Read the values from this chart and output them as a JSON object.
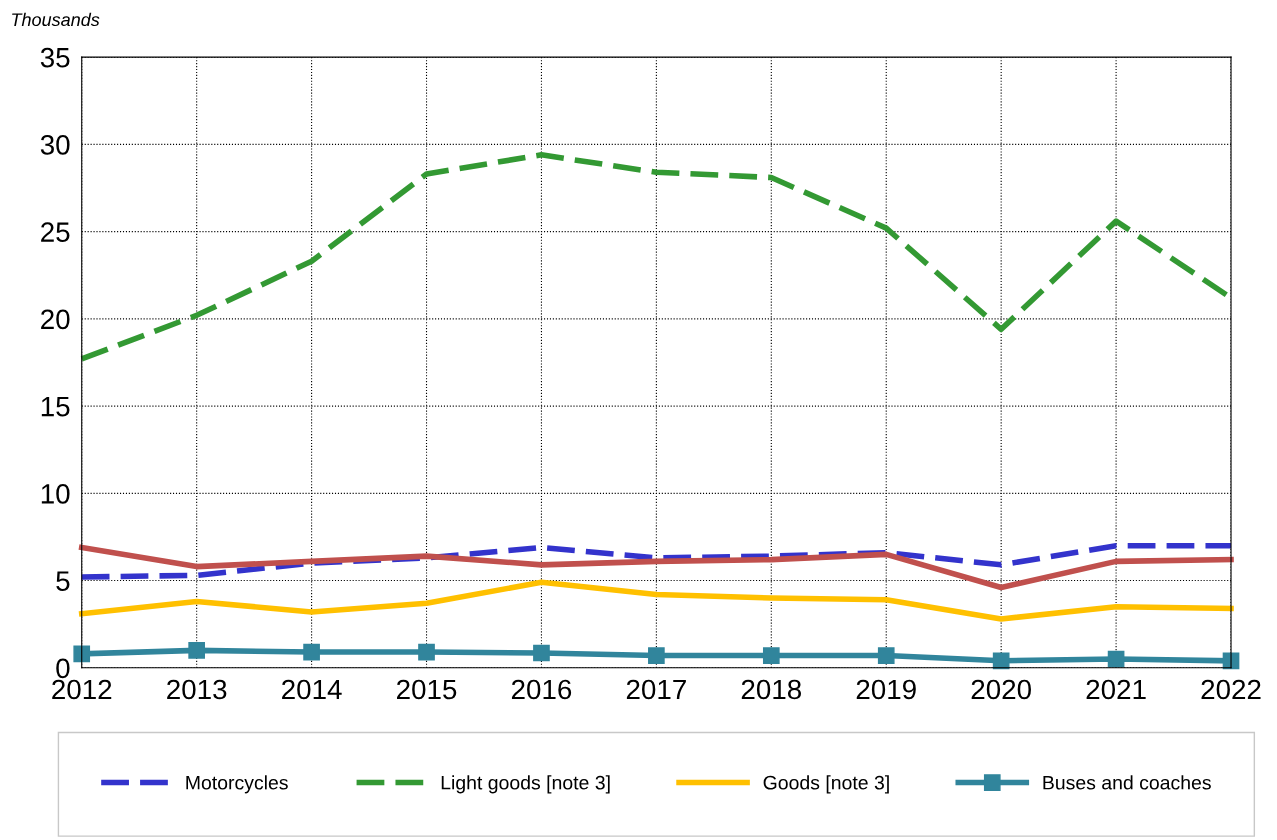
{
  "chart_data": {
    "type": "line",
    "ylabel": "Thousands",
    "x": [
      2012,
      2013,
      2014,
      2015,
      2016,
      2017,
      2018,
      2019,
      2020,
      2021,
      2022
    ],
    "xlim": [
      2012,
      2022
    ],
    "xticks": [
      2012,
      2013,
      2014,
      2015,
      2016,
      2017,
      2018,
      2019,
      2020,
      2021,
      2022
    ],
    "ylim": [
      0,
      35
    ],
    "yticks": [
      0,
      5,
      10,
      15,
      20,
      25,
      30,
      35
    ],
    "grid": true,
    "legend": "bottom",
    "series": [
      {
        "name": "Motorcycles",
        "color": "#3333cc",
        "line_style": "dashed",
        "values": [
          5.2,
          5.3,
          6.0,
          6.3,
          6.9,
          6.3,
          6.4,
          6.6,
          5.9,
          7.0,
          7.0
        ]
      },
      {
        "name": "Light goods [note 3]",
        "color": "#339933",
        "line_style": "dashed",
        "values": [
          17.7,
          20.2,
          23.3,
          28.3,
          29.4,
          28.4,
          28.1,
          25.2,
          19.4,
          25.6,
          21.2
        ]
      },
      {
        "color": "#c0504d",
        "line_style": "solid",
        "values": [
          6.9,
          5.8,
          6.1,
          6.4,
          5.9,
          6.1,
          6.2,
          6.5,
          4.6,
          6.1,
          6.2
        ]
      },
      {
        "name": "Goods [note 3]",
        "color": "#ffc000",
        "line_style": "solid",
        "values": [
          3.1,
          3.8,
          3.2,
          3.7,
          4.9,
          4.2,
          4.0,
          3.9,
          2.8,
          3.5,
          3.4
        ]
      },
      {
        "name": "Buses and coaches",
        "color": "#31859c",
        "line_style": "solid",
        "marker": "square",
        "values": [
          0.8,
          1.0,
          0.9,
          0.9,
          0.85,
          0.7,
          0.7,
          0.7,
          0.4,
          0.5,
          0.4
        ]
      }
    ]
  }
}
